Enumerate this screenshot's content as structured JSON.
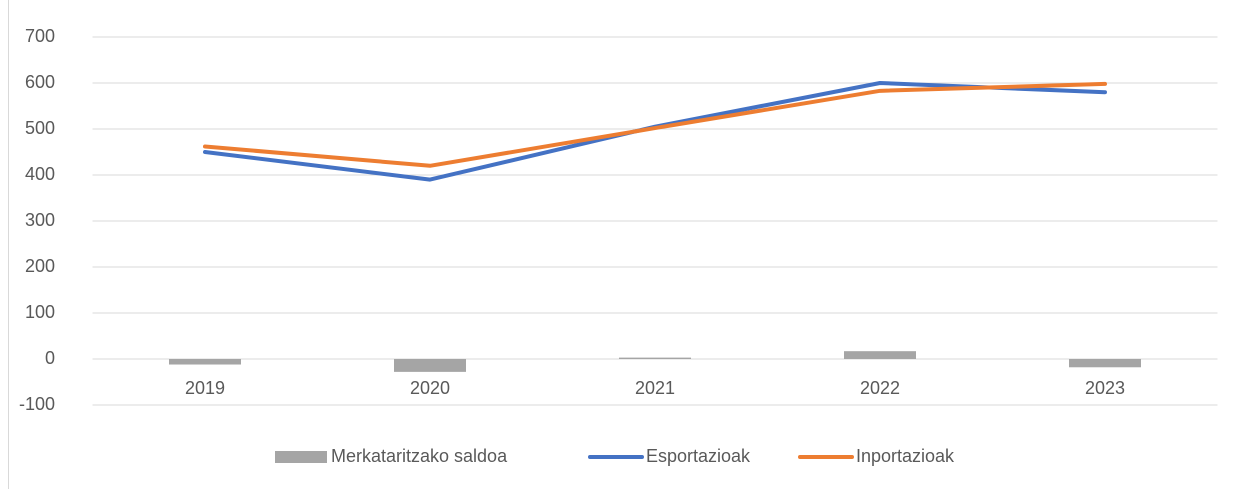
{
  "chart_data": {
    "type": "combo",
    "categories": [
      "2019",
      "2020",
      "2021",
      "2022",
      "2023"
    ],
    "series": [
      {
        "name": "Merkataritzako saldoa",
        "type": "bar",
        "color": "#a5a5a5",
        "values": [
          -12,
          -28,
          3,
          17,
          -18
        ]
      },
      {
        "name": "Esportazioak",
        "type": "line",
        "color": "#4472c4",
        "values": [
          450,
          390,
          505,
          600,
          580
        ]
      },
      {
        "name": "Inportazioak",
        "type": "line",
        "color": "#ed7d31",
        "values": [
          462,
          420,
          502,
          583,
          598
        ]
      }
    ],
    "ylim": [
      -100,
      700
    ],
    "yticks": [
      -100,
      0,
      100,
      200,
      300,
      400,
      500,
      600,
      700
    ],
    "grid": true,
    "legend": "bottom"
  }
}
